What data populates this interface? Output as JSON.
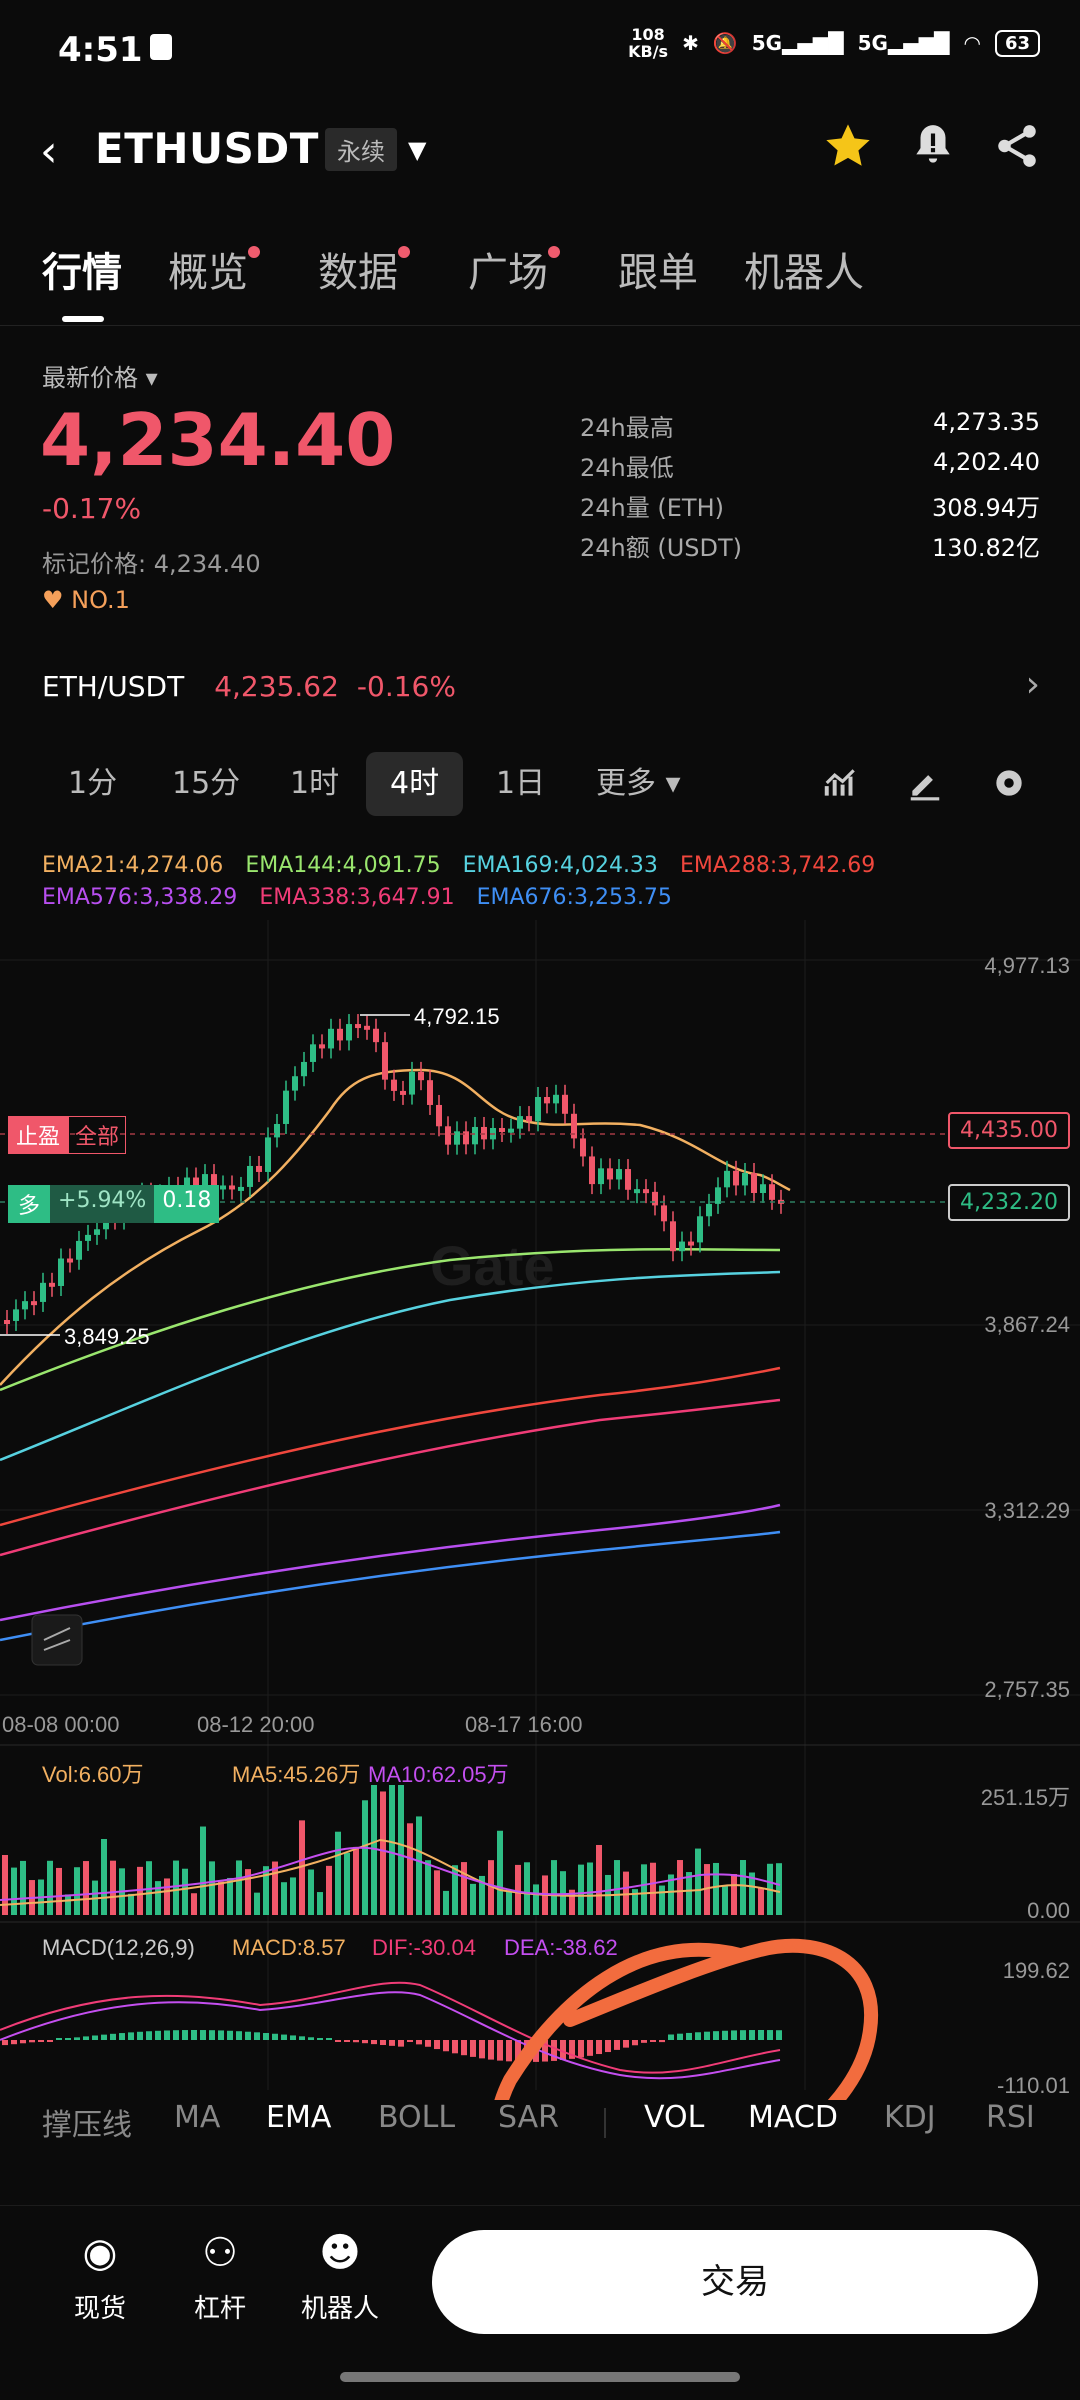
{
  "status": {
    "time": "4:51",
    "speed_top": "108",
    "speed_bottom": "KB/s",
    "net1": "5G",
    "net2": "5G",
    "battery": "63"
  },
  "header": {
    "symbol": "ETHUSDT",
    "perp": "永续"
  },
  "tabs": [
    "行情",
    "概览",
    "数据",
    "广场",
    "跟单",
    "机器人"
  ],
  "price": {
    "label": "最新价格",
    "last": "4,234.40",
    "change": "-0.17%",
    "mark_label": "标记价格:",
    "mark_value": "4,234.40",
    "rank": "NO.1"
  },
  "stats": [
    {
      "k": "24h最高",
      "v": "4,273.35"
    },
    {
      "k": "24h最低",
      "v": "4,202.40"
    },
    {
      "k": "24h量 (ETH)",
      "v": "308.94万"
    },
    {
      "k": "24h额 (USDT)",
      "v": "130.82亿"
    }
  ],
  "spot": {
    "pair": "ETH/USDT",
    "price": "4,235.62",
    "change": "-0.16%"
  },
  "timeframes": [
    "1分",
    "15分",
    "1时",
    "4时",
    "1日",
    "更多"
  ],
  "ema": [
    {
      "t": "EMA21:4,274.06",
      "c": "#f2b061"
    },
    {
      "t": "EMA144:4,091.75",
      "c": "#9ae66e"
    },
    {
      "t": "EMA169:4,024.33",
      "c": "#57d2e0"
    },
    {
      "t": "EMA288:3,742.69",
      "c": "#f0473d"
    },
    {
      "t": "EMA576:3,338.29",
      "c": "#b84ff0"
    },
    {
      "t": "EMA338:3,647.91",
      "c": "#f03c77"
    },
    {
      "t": "EMA676:3,253.75",
      "c": "#3f8ff5"
    }
  ],
  "price_axis": [
    "4,977.13",
    "3,867.24",
    "3,312.29",
    "2,757.35"
  ],
  "tags": {
    "tp": "止盈",
    "all": "全部",
    "tp_price": "4,435.00",
    "long": "多",
    "pnl": "+5.94%",
    "qty": "0.18",
    "cur_price": "4,232.20"
  },
  "annotations": {
    "high": "4,792.15",
    "low": "3,849.25"
  },
  "dates": [
    "08-08 00:00",
    "08-12 20:00",
    "08-17 16:00"
  ],
  "vol": {
    "vol": "Vol:6.60万",
    "ma5": "MA5:45.26万",
    "ma10": "MA10:62.05万",
    "max": "251.15万",
    "min": "0.00"
  },
  "macd": {
    "label": "MACD(12,26,9)",
    "macd": "MACD:8.57",
    "dif": "DIF:-30.04",
    "dea": "DEA:-38.62",
    "max": "199.62",
    "min": "-110.01"
  },
  "indicators": [
    "撑压线",
    "MA",
    "EMA",
    "BOLL",
    "SAR",
    "VOL",
    "MACD",
    "KDJ",
    "RSI"
  ],
  "nav": [
    "现货",
    "杠杆",
    "机器人"
  ],
  "trade": "交易",
  "colors": {
    "up": "#2ebd85",
    "down": "#f0576a",
    "accent": "#f5a05a"
  }
}
